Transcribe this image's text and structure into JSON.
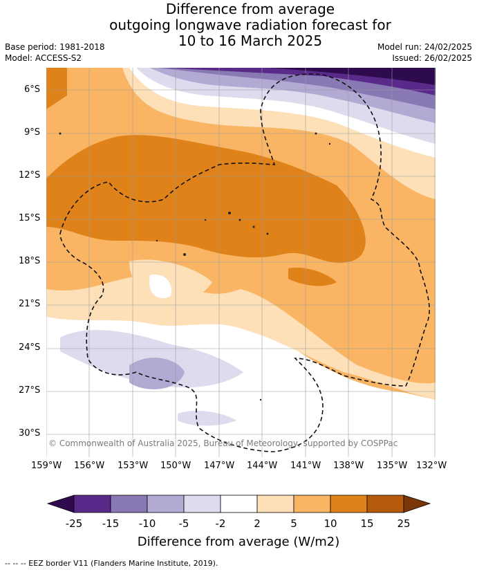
{
  "title_lines": [
    "Difference from average",
    "outgoing longwave radiation forecast for",
    "10 to 16 March 2025"
  ],
  "meta_left": [
    "Base period: 1981-2018",
    "Model: ACCESS-S2"
  ],
  "meta_right": [
    "Model run: 24/02/2025",
    "Issued: 26/02/2025"
  ],
  "map": {
    "lon_range": [
      -159,
      -132
    ],
    "lat_range": [
      -31,
      -5
    ],
    "lat_ticks": [
      "6°S",
      "9°S",
      "12°S",
      "15°S",
      "18°S",
      "21°S",
      "24°S",
      "27°S",
      "30°S"
    ],
    "lon_ticks": [
      "159°W",
      "156°W",
      "153°W",
      "150°W",
      "147°W",
      "144°W",
      "141°W",
      "138°W",
      "135°W",
      "132°W"
    ],
    "copyright": "© Commonwealth of Australia 2025, Bureau of Meteorology, supported by COSPPac"
  },
  "colorbar": {
    "ticks": [
      "-25",
      "-15",
      "-10",
      "-5",
      "-2",
      "2",
      "5",
      "10",
      "15",
      "25"
    ],
    "colors": [
      "#2e0b4f",
      "#5a2a8a",
      "#8878b3",
      "#b3aad3",
      "#dcdcee",
      "#ffffff",
      "#fde0b8",
      "#f9b564",
      "#e0821a",
      "#b55a0c",
      "#7a3606"
    ],
    "label": "Difference from average (W/m2)"
  },
  "footer": "--  --  -- EEZ border V11 (Flanders Marine Institute, 2019)."
}
